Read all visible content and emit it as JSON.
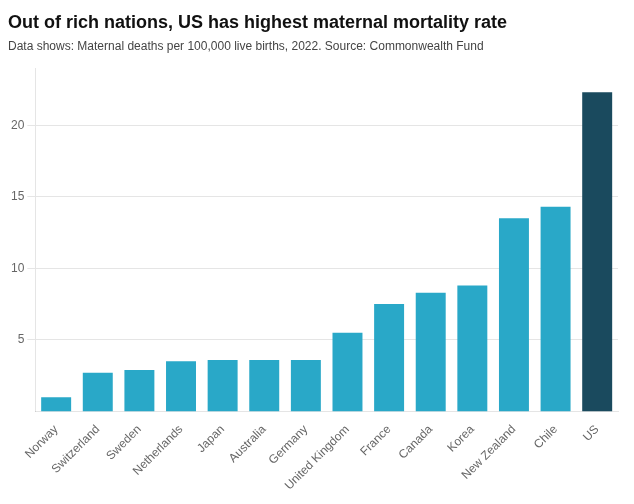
{
  "chart_data": {
    "type": "bar",
    "title": "Out of rich nations, US has highest maternal mortality rate",
    "subtitle": "Data shows: Maternal deaths per 100,000 live births, 2022. Source: Commonwealth Fund",
    "categories": [
      "Norway",
      "Switzerland",
      "Sweden",
      "Netherlands",
      "Japan",
      "Australia",
      "Germany",
      "United Kingdom",
      "France",
      "Canada",
      "Korea",
      "New Zealand",
      "Chile",
      "US"
    ],
    "values": [
      1.0,
      2.7,
      2.9,
      3.5,
      3.6,
      3.6,
      3.6,
      5.5,
      7.5,
      8.3,
      8.8,
      13.5,
      14.3,
      22.3
    ],
    "colors": [
      "#29a8c8",
      "#29a8c8",
      "#29a8c8",
      "#29a8c8",
      "#29a8c8",
      "#29a8c8",
      "#29a8c8",
      "#29a8c8",
      "#29a8c8",
      "#29a8c8",
      "#29a8c8",
      "#29a8c8",
      "#29a8c8",
      "#1a4a5e"
    ],
    "ylim": [
      0,
      24
    ],
    "yticks": [
      5,
      10,
      15,
      20
    ],
    "grid": true
  }
}
